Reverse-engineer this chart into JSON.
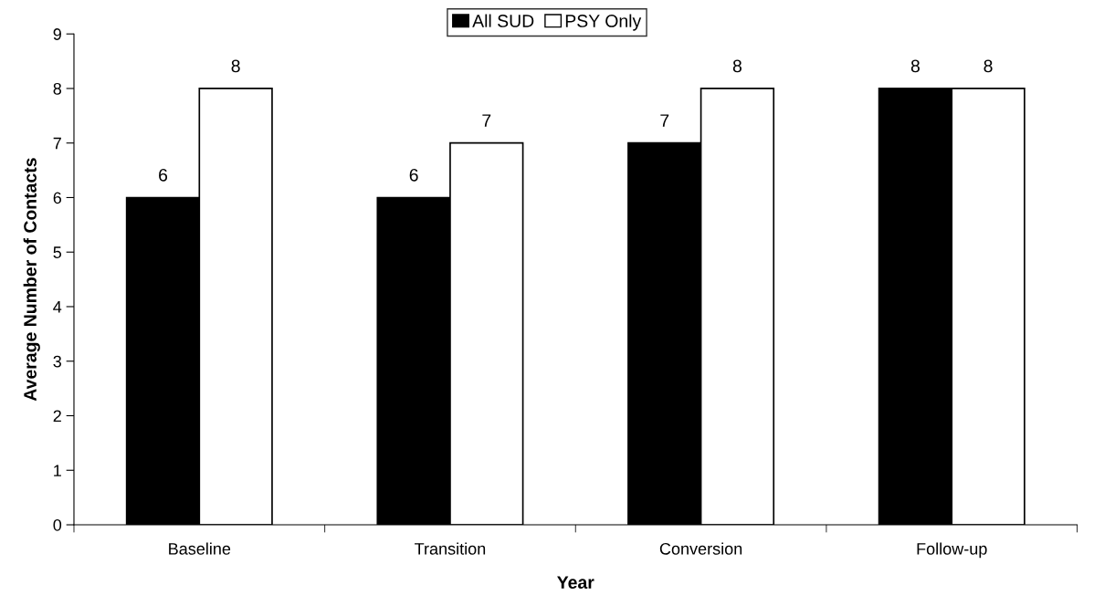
{
  "chart_data": {
    "type": "bar",
    "xlabel": "Year",
    "ylabel": "Average Number of Contacts",
    "categories": [
      "Baseline",
      "Transition",
      "Conversion",
      "Follow-up"
    ],
    "series": [
      {
        "name": "All SUD",
        "color": "#000000",
        "values": [
          6,
          6,
          7,
          8
        ]
      },
      {
        "name": "PSY Only",
        "color": "#ffffff",
        "values": [
          8,
          7,
          8,
          8
        ]
      }
    ],
    "ylim": [
      0,
      9
    ],
    "yticks": [
      0,
      1,
      2,
      3,
      4,
      5,
      6,
      7,
      8,
      9
    ],
    "grid": false,
    "legend": "top",
    "data_labels": true
  }
}
